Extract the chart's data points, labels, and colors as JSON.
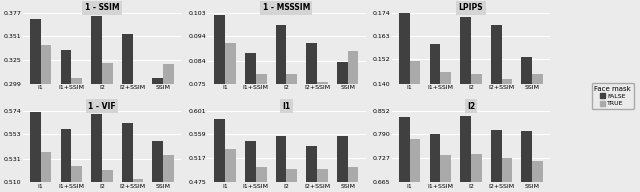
{
  "subplots": [
    {
      "title": "1 - SSIM",
      "ylim": [
        0.299,
        0.377
      ],
      "yticks": [
        0.299,
        0.325,
        0.351,
        0.377
      ],
      "false_values": [
        0.37,
        0.336,
        0.373,
        0.354,
        0.306
      ],
      "true_values": [
        0.342,
        0.306,
        0.322,
        0.298,
        0.321
      ]
    },
    {
      "title": "1 - MSSSIM",
      "ylim": [
        0.075,
        0.103
      ],
      "yticks": [
        0.075,
        0.084,
        0.094,
        0.103
      ],
      "false_values": [
        0.102,
        0.087,
        0.098,
        0.091,
        0.0835
      ],
      "true_values": [
        0.091,
        0.079,
        0.079,
        0.076,
        0.088
      ]
    },
    {
      "title": "LPIPS",
      "ylim": [
        0.14,
        0.174
      ],
      "yticks": [
        0.14,
        0.152,
        0.163,
        0.174
      ],
      "false_values": [
        0.174,
        0.159,
        0.172,
        0.168,
        0.153
      ],
      "true_values": [
        0.151,
        0.1455,
        0.145,
        0.1425,
        0.145
      ]
    },
    {
      "title": "1 - VIF",
      "ylim": [
        0.51,
        0.574
      ],
      "yticks": [
        0.51,
        0.531,
        0.553,
        0.574
      ],
      "false_values": [
        0.5725,
        0.558,
        0.571,
        0.563,
        0.547
      ],
      "true_values": [
        0.537,
        0.524,
        0.521,
        0.513,
        0.534
      ]
    },
    {
      "title": "I1",
      "ylim": [
        0.475,
        0.601
      ],
      "yticks": [
        0.475,
        0.517,
        0.559,
        0.601
      ],
      "false_values": [
        0.587,
        0.547,
        0.556,
        0.539,
        0.557
      ],
      "true_values": [
        0.533,
        0.502,
        0.499,
        0.499,
        0.502
      ]
    },
    {
      "title": "I2",
      "ylim": [
        0.665,
        0.852
      ],
      "yticks": [
        0.665,
        0.727,
        0.79,
        0.852
      ],
      "false_values": [
        0.836,
        0.792,
        0.838,
        0.801,
        0.8
      ],
      "true_values": [
        0.779,
        0.737,
        0.738,
        0.728,
        0.719
      ]
    }
  ],
  "categories": [
    "I1",
    "I1+SSIM",
    "I2",
    "I2+SSIM",
    "SSIM"
  ],
  "color_false": "#404040",
  "color_true": "#aaaaaa",
  "background_color": "#ebebeb",
  "title_bg_color": "#d4d4d4",
  "grid_color": "#ffffff",
  "legend_labels": [
    "FALSE",
    "TRUE"
  ],
  "legend_title": "Face mask",
  "bar_width": 0.35
}
